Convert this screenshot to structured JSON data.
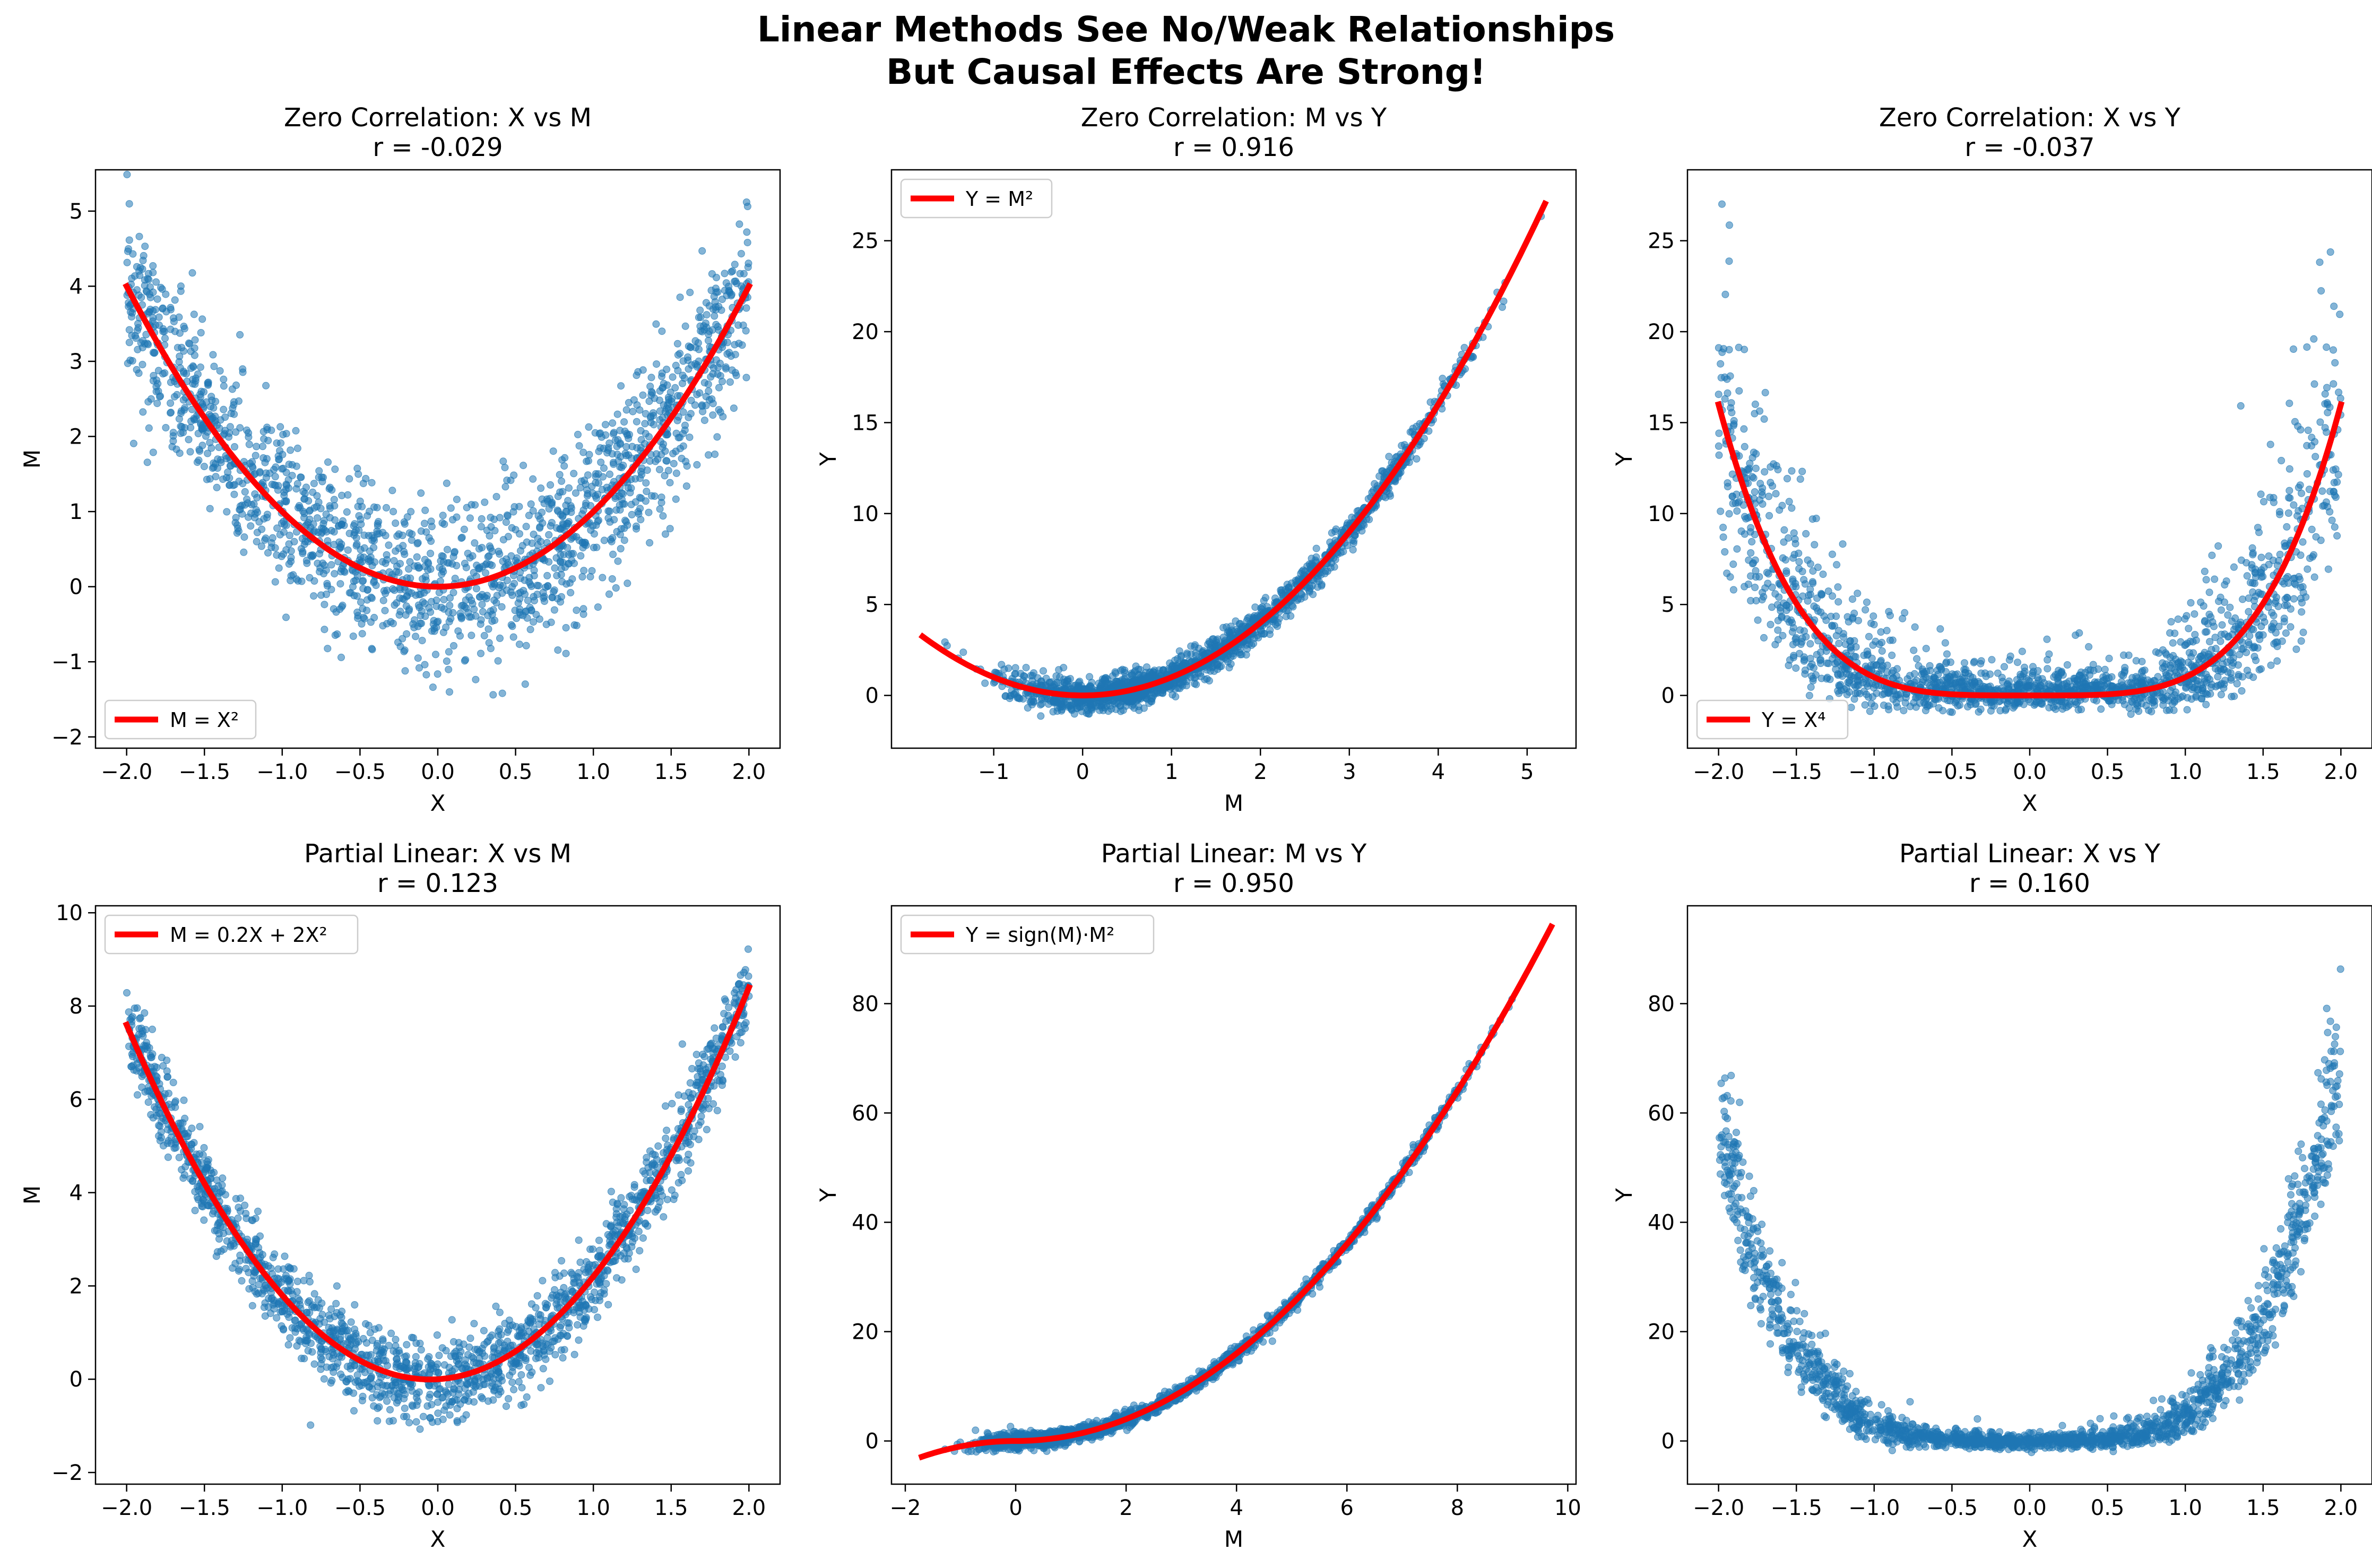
{
  "suptitle": {
    "line1": "Linear Methods See No/Weak Relationships",
    "line2": "But Causal Effects Are Strong!"
  },
  "colors": {
    "scatter": "#1f77b4",
    "fit": "#ff0000"
  },
  "chart_data": [
    {
      "type": "scatter",
      "title": "Zero Correlation: X vs M",
      "subtitle": "r = -0.029",
      "xlabel": "X",
      "ylabel": "M",
      "xlim": [
        -2.2,
        2.2
      ],
      "ylim": [
        -2.15,
        5.55
      ],
      "xticks": [
        -2.0,
        -1.5,
        -1.0,
        -0.5,
        0.0,
        0.5,
        1.0,
        1.5,
        2.0
      ],
      "xtick_labels": [
        "−2.0",
        "−1.5",
        "−1.0",
        "−0.5",
        "0.0",
        "0.5",
        "1.0",
        "1.5",
        "2.0"
      ],
      "yticks": [
        -2,
        -1,
        0,
        1,
        2,
        3,
        4,
        5
      ],
      "ytick_labels": [
        "−2",
        "−1",
        "0",
        "1",
        "2",
        "3",
        "4",
        "5"
      ],
      "legend": "lower-left",
      "legend_label": "M = X²",
      "fit": "x2",
      "scatter": {
        "gen": "uniform",
        "xrange": [
          -2,
          2
        ],
        "f": "x2",
        "noise": 0.55,
        "n": 1800
      }
    },
    {
      "type": "scatter",
      "title": "Zero Correlation: M vs Y",
      "subtitle": "r = 0.916",
      "xlabel": "M",
      "ylabel": "Y",
      "xlim": [
        -2.15,
        5.55
      ],
      "ylim": [
        -2.9,
        28.9
      ],
      "xticks": [
        -1,
        0,
        1,
        2,
        3,
        4,
        5
      ],
      "xtick_labels": [
        "−1",
        "0",
        "1",
        "2",
        "3",
        "4",
        "5"
      ],
      "yticks": [
        0,
        5,
        10,
        15,
        20,
        25
      ],
      "ytick_labels": [
        "0",
        "5",
        "10",
        "15",
        "20",
        "25"
      ],
      "legend": "upper-left",
      "legend_label": "Y = M²",
      "fit": "x2",
      "fit_xrange": [
        -1.8,
        5.2
      ],
      "scatter": {
        "gen": "mediator",
        "mfunc": "x2",
        "mnoise": 0.55,
        "f": "x2",
        "noise": 0.45,
        "n": 1800
      }
    },
    {
      "type": "scatter",
      "title": "Zero Correlation: X vs Y",
      "subtitle": "r = -0.037",
      "xlabel": "X",
      "ylabel": "Y",
      "xlim": [
        -2.2,
        2.2
      ],
      "ylim": [
        -2.9,
        28.9
      ],
      "xticks": [
        -2.0,
        -1.5,
        -1.0,
        -0.5,
        0.0,
        0.5,
        1.0,
        1.5,
        2.0
      ],
      "xtick_labels": [
        "−2.0",
        "−1.5",
        "−1.0",
        "−0.5",
        "0.0",
        "0.5",
        "1.0",
        "1.5",
        "2.0"
      ],
      "yticks": [
        0,
        5,
        10,
        15,
        20,
        25
      ],
      "ytick_labels": [
        "0",
        "5",
        "10",
        "15",
        "20",
        "25"
      ],
      "legend": "lower-left",
      "legend_label": "Y = X⁴",
      "fit": "x4",
      "scatter": {
        "gen": "chain",
        "mfunc": "x2",
        "mnoise": 0.55,
        "f": "x2",
        "noise": 0.45,
        "n": 1800
      }
    },
    {
      "type": "scatter",
      "title": "Partial Linear: X vs M",
      "subtitle": "r = 0.123",
      "xlabel": "X",
      "ylabel": "M",
      "xlim": [
        -2.2,
        2.2
      ],
      "ylim": [
        -2.25,
        10.15
      ],
      "xticks": [
        -2.0,
        -1.5,
        -1.0,
        -0.5,
        0.0,
        0.5,
        1.0,
        1.5,
        2.0
      ],
      "xtick_labels": [
        "−2.0",
        "−1.5",
        "−1.0",
        "−0.5",
        "0.0",
        "0.5",
        "1.0",
        "1.5",
        "2.0"
      ],
      "yticks": [
        -2,
        0,
        2,
        4,
        6,
        8,
        10
      ],
      "ytick_labels": [
        "−2",
        "0",
        "2",
        "4",
        "6",
        "8",
        "10"
      ],
      "legend": "upper-left",
      "legend_label": "M = 0.2X + 2X²",
      "fit": "p2",
      "scatter": {
        "gen": "uniform",
        "xrange": [
          -2,
          2
        ],
        "f": "p2",
        "noise": 0.45,
        "n": 1800
      }
    },
    {
      "type": "scatter",
      "title": "Partial Linear: M vs Y",
      "subtitle": "r = 0.950",
      "xlabel": "M",
      "ylabel": "Y",
      "xlim": [
        -2.25,
        10.15
      ],
      "ylim": [
        -7.9,
        97.9
      ],
      "xticks": [
        -2,
        0,
        2,
        4,
        6,
        8,
        10
      ],
      "xtick_labels": [
        "−2",
        "0",
        "2",
        "4",
        "6",
        "8",
        "10"
      ],
      "yticks": [
        0,
        20,
        40,
        60,
        80
      ],
      "ytick_labels": [
        "0",
        "20",
        "40",
        "60",
        "80"
      ],
      "legend": "upper-left",
      "legend_label": "Y = sign(M)·M²",
      "fit": "sx2",
      "fit_xrange": [
        -1.7,
        9.7
      ],
      "scatter": {
        "gen": "mediator",
        "mfunc": "p2",
        "mnoise": 0.45,
        "f": "sx2",
        "noise": 0.7,
        "n": 1800
      }
    },
    {
      "type": "scatter",
      "title": "Partial Linear: X vs Y",
      "subtitle": "r = 0.160",
      "xlabel": "X",
      "ylabel": "Y",
      "xlim": [
        -2.2,
        2.2
      ],
      "ylim": [
        -7.9,
        97.9
      ],
      "xticks": [
        -2.0,
        -1.5,
        -1.0,
        -0.5,
        0.0,
        0.5,
        1.0,
        1.5,
        2.0
      ],
      "xtick_labels": [
        "−2.0",
        "−1.5",
        "−1.0",
        "−0.5",
        "0.0",
        "0.5",
        "1.0",
        "1.5",
        "2.0"
      ],
      "yticks": [
        0,
        20,
        40,
        60,
        80
      ],
      "ytick_labels": [
        "0",
        "20",
        "40",
        "60",
        "80"
      ],
      "legend": "",
      "legend_label": "",
      "fit": "",
      "scatter": {
        "gen": "chain",
        "mfunc": "p2",
        "mnoise": 0.45,
        "f": "sx2",
        "noise": 0.7,
        "n": 1800
      }
    }
  ]
}
